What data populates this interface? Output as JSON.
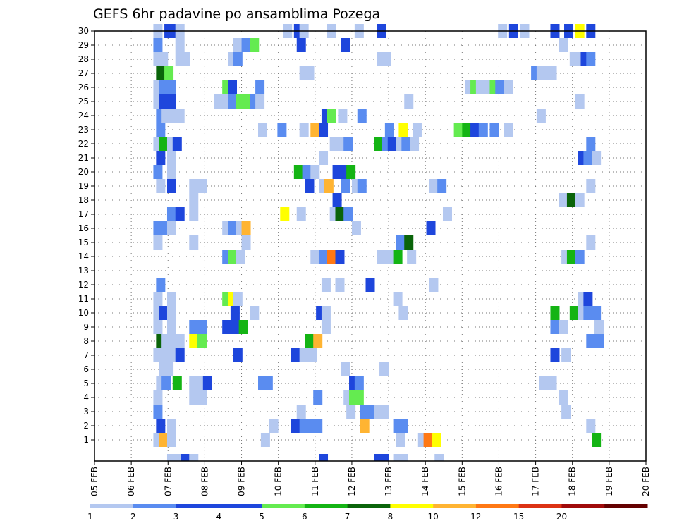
{
  "chart_data": {
    "type": "heatmap",
    "title": "GEFS 6hr padavine po ansamblima Pozega",
    "xlabel": "",
    "ylabel": "",
    "x_tick_labels": [
      "05 FEB",
      "06 FEB",
      "07 FEB",
      "08 FEB",
      "09 FEB",
      "10 FEB",
      "11 FEB",
      "12 FEB",
      "13 FEB",
      "14 FEB",
      "15 FEB",
      "16 FEB",
      "17 FEB",
      "18 FEB",
      "19 FEB",
      "20 FEB"
    ],
    "y_tick_labels": [
      "1",
      "2",
      "3",
      "4",
      "5",
      "6",
      "7",
      "8",
      "9",
      "10",
      "11",
      "12",
      "13",
      "14",
      "15",
      "16",
      "17",
      "18",
      "19",
      "20",
      "21",
      "22",
      "23",
      "24",
      "25",
      "26",
      "27",
      "28",
      "29",
      "30"
    ],
    "x_range_days": [
      0,
      15
    ],
    "y_range": [
      0,
      30
    ],
    "grid": "dotted",
    "colorbar": {
      "levels": [
        "1",
        "2",
        "3",
        "4",
        "5",
        "6",
        "7",
        "8",
        "10",
        "12",
        "15",
        "20"
      ],
      "colors": [
        "#b4c8f0",
        "#5a8cf0",
        "#1e46dc",
        "#1e46dc",
        "#64eb50",
        "#14b414",
        "#0a640a",
        "#ffff00",
        "#ffb432",
        "#ff7814",
        "#dc3214",
        "#a00a0a",
        "#640000"
      ]
    },
    "level_colors": {
      "1": "#b4c8f0",
      "2": "#5a8cf0",
      "3": "#1e46dc",
      "4": "#64eb50",
      "5": "#14b414",
      "6": "#0a640a",
      "7": "#ffff00",
      "8": "#ffb432",
      "9": "#ff7814"
    },
    "cells": [
      [
        30,
        0.23,
        1
      ],
      [
        30,
        0.27,
        3
      ],
      [
        30,
        0.29,
        3
      ],
      [
        30,
        0.31,
        1
      ],
      [
        30,
        0.7,
        1
      ],
      [
        30,
        0.74,
        3
      ],
      [
        30,
        0.76,
        1
      ],
      [
        30,
        0.86,
        1
      ],
      [
        30,
        0.96,
        1
      ],
      [
        30,
        1.04,
        3
      ],
      [
        30,
        1.48,
        1
      ],
      [
        30,
        1.52,
        3
      ],
      [
        30,
        1.56,
        1
      ],
      [
        30,
        1.67,
        3
      ],
      [
        30,
        1.72,
        3
      ],
      [
        30,
        1.76,
        7
      ],
      [
        30,
        1.8,
        3
      ],
      [
        29,
        0.23,
        2
      ],
      [
        29,
        0.31,
        1
      ],
      [
        29,
        0.52,
        1
      ],
      [
        29,
        0.55,
        2
      ],
      [
        29,
        0.58,
        4
      ],
      [
        29,
        0.75,
        3
      ],
      [
        29,
        0.91,
        3
      ],
      [
        29,
        1.7,
        1
      ],
      [
        28,
        0.23,
        1
      ],
      [
        28,
        0.25,
        1
      ],
      [
        28,
        0.31,
        1
      ],
      [
        28,
        0.33,
        1
      ],
      [
        28,
        0.5,
        1
      ],
      [
        28,
        0.52,
        2
      ],
      [
        28,
        1.04,
        1
      ],
      [
        28,
        1.06,
        1
      ],
      [
        28,
        1.74,
        1
      ],
      [
        28,
        1.76,
        1
      ],
      [
        28,
        1.78,
        3
      ],
      [
        28,
        1.8,
        2
      ],
      [
        27,
        0.24,
        6
      ],
      [
        27,
        0.27,
        4
      ],
      [
        27,
        0.76,
        1
      ],
      [
        27,
        0.78,
        1
      ],
      [
        27,
        1.6,
        2
      ],
      [
        27,
        1.62,
        1
      ],
      [
        27,
        1.64,
        1
      ],
      [
        27,
        1.66,
        1
      ],
      [
        26,
        0.23,
        1
      ],
      [
        26,
        0.25,
        2
      ],
      [
        26,
        0.28,
        2
      ],
      [
        26,
        0.48,
        4
      ],
      [
        26,
        0.5,
        3
      ],
      [
        26,
        0.6,
        2
      ],
      [
        26,
        1.36,
        1
      ],
      [
        26,
        1.38,
        4
      ],
      [
        26,
        1.4,
        1
      ],
      [
        26,
        1.42,
        1
      ],
      [
        26,
        1.45,
        4
      ],
      [
        26,
        1.47,
        2
      ],
      [
        26,
        1.5,
        1
      ],
      [
        25,
        0.23,
        1
      ],
      [
        25,
        0.25,
        3
      ],
      [
        25,
        0.28,
        3
      ],
      [
        25,
        0.45,
        1
      ],
      [
        25,
        0.48,
        1
      ],
      [
        25,
        0.5,
        2
      ],
      [
        25,
        0.53,
        4
      ],
      [
        25,
        0.55,
        4
      ],
      [
        25,
        0.58,
        2
      ],
      [
        25,
        0.6,
        1
      ],
      [
        25,
        1.14,
        1
      ],
      [
        25,
        1.76,
        1
      ],
      [
        24,
        0.24,
        2
      ],
      [
        24,
        0.26,
        1
      ],
      [
        24,
        0.28,
        1
      ],
      [
        24,
        0.31,
        1
      ],
      [
        24,
        0.84,
        3
      ],
      [
        24,
        0.86,
        4
      ],
      [
        24,
        0.9,
        1
      ],
      [
        24,
        0.97,
        2
      ],
      [
        24,
        1.62,
        1
      ],
      [
        23,
        0.24,
        2
      ],
      [
        23,
        0.61,
        1
      ],
      [
        23,
        0.68,
        2
      ],
      [
        23,
        0.76,
        1
      ],
      [
        23,
        0.8,
        8
      ],
      [
        23,
        0.83,
        3
      ],
      [
        23,
        1.07,
        2
      ],
      [
        23,
        1.12,
        7
      ],
      [
        23,
        1.17,
        1
      ],
      [
        23,
        1.32,
        4
      ],
      [
        23,
        1.35,
        5
      ],
      [
        23,
        1.38,
        3
      ],
      [
        23,
        1.41,
        2
      ],
      [
        23,
        1.45,
        2
      ],
      [
        23,
        1.5,
        1
      ],
      [
        22,
        0.23,
        1
      ],
      [
        22,
        0.25,
        5
      ],
      [
        22,
        0.28,
        1
      ],
      [
        22,
        0.3,
        3
      ],
      [
        22,
        0.87,
        1
      ],
      [
        22,
        0.9,
        1
      ],
      [
        22,
        0.92,
        2
      ],
      [
        22,
        1.03,
        5
      ],
      [
        22,
        1.06,
        2
      ],
      [
        22,
        1.08,
        3
      ],
      [
        22,
        1.11,
        1
      ],
      [
        22,
        1.13,
        2
      ],
      [
        22,
        1.16,
        1
      ],
      [
        22,
        1.8,
        2
      ],
      [
        21,
        0.24,
        3
      ],
      [
        21,
        0.28,
        1
      ],
      [
        21,
        0.83,
        1
      ],
      [
        21,
        1.77,
        3
      ],
      [
        21,
        1.79,
        2
      ],
      [
        21,
        1.82,
        1
      ],
      [
        20,
        0.23,
        2
      ],
      [
        20,
        0.28,
        1
      ],
      [
        20,
        0.74,
        5
      ],
      [
        20,
        0.77,
        2
      ],
      [
        20,
        0.8,
        1
      ],
      [
        20,
        0.88,
        3
      ],
      [
        20,
        0.91,
        3
      ],
      [
        20,
        0.93,
        5
      ],
      [
        19,
        0.24,
        1
      ],
      [
        19,
        0.28,
        3
      ],
      [
        19,
        0.36,
        1
      ],
      [
        19,
        0.39,
        1
      ],
      [
        19,
        0.78,
        3
      ],
      [
        19,
        0.83,
        1
      ],
      [
        19,
        0.85,
        8
      ],
      [
        19,
        0.91,
        2
      ],
      [
        19,
        0.95,
        1
      ],
      [
        19,
        0.97,
        2
      ],
      [
        19,
        1.23,
        1
      ],
      [
        19,
        1.26,
        2
      ],
      [
        19,
        1.8,
        1
      ],
      [
        18,
        0.36,
        1
      ],
      [
        18,
        0.88,
        3
      ],
      [
        18,
        1.7,
        1
      ],
      [
        18,
        1.73,
        6
      ],
      [
        18,
        1.76,
        1
      ],
      [
        17,
        0.28,
        2
      ],
      [
        17,
        0.31,
        3
      ],
      [
        17,
        0.36,
        1
      ],
      [
        17,
        0.69,
        7
      ],
      [
        17,
        0.75,
        1
      ],
      [
        17,
        0.87,
        1
      ],
      [
        17,
        0.89,
        6
      ],
      [
        17,
        0.92,
        2
      ],
      [
        17,
        1.28,
        1
      ],
      [
        16,
        0.23,
        2
      ],
      [
        16,
        0.26,
        2
      ],
      [
        16,
        0.28,
        1
      ],
      [
        16,
        0.48,
        1
      ],
      [
        16,
        0.5,
        2
      ],
      [
        16,
        0.53,
        1
      ],
      [
        16,
        0.55,
        8
      ],
      [
        16,
        0.95,
        1
      ],
      [
        16,
        1.22,
        3
      ],
      [
        15,
        0.23,
        1
      ],
      [
        15,
        0.36,
        1
      ],
      [
        15,
        0.55,
        1
      ],
      [
        15,
        1.11,
        2
      ],
      [
        15,
        1.14,
        6
      ],
      [
        15,
        1.8,
        1
      ],
      [
        14,
        0.48,
        2
      ],
      [
        14,
        0.5,
        4
      ],
      [
        14,
        0.53,
        1
      ],
      [
        14,
        0.8,
        1
      ],
      [
        14,
        0.83,
        2
      ],
      [
        14,
        0.86,
        9
      ],
      [
        14,
        0.89,
        3
      ],
      [
        14,
        1.04,
        1
      ],
      [
        14,
        1.07,
        1
      ],
      [
        14,
        1.1,
        5
      ],
      [
        14,
        1.15,
        1
      ],
      [
        14,
        1.71,
        1
      ],
      [
        14,
        1.73,
        5
      ],
      [
        14,
        1.76,
        2
      ],
      [
        12,
        0.24,
        2
      ],
      [
        12,
        0.84,
        1
      ],
      [
        12,
        0.89,
        1
      ],
      [
        12,
        1.0,
        3
      ],
      [
        12,
        1.23,
        1
      ],
      [
        11,
        0.23,
        1
      ],
      [
        11,
        0.28,
        1
      ],
      [
        11,
        0.48,
        4
      ],
      [
        11,
        0.5,
        7
      ],
      [
        11,
        0.52,
        1
      ],
      [
        11,
        1.1,
        1
      ],
      [
        11,
        1.77,
        1
      ],
      [
        11,
        1.79,
        3
      ],
      [
        10,
        0.23,
        1
      ],
      [
        10,
        0.25,
        3
      ],
      [
        10,
        0.28,
        1
      ],
      [
        10,
        0.51,
        3
      ],
      [
        10,
        0.58,
        1
      ],
      [
        10,
        0.82,
        3
      ],
      [
        10,
        0.84,
        1
      ],
      [
        10,
        1.12,
        1
      ],
      [
        10,
        1.67,
        5
      ],
      [
        10,
        1.74,
        5
      ],
      [
        10,
        1.77,
        1
      ],
      [
        10,
        1.79,
        2
      ],
      [
        10,
        1.82,
        2
      ],
      [
        9,
        0.23,
        1
      ],
      [
        9,
        0.28,
        1
      ],
      [
        9,
        0.36,
        2
      ],
      [
        9,
        0.39,
        2
      ],
      [
        9,
        0.48,
        3
      ],
      [
        9,
        0.51,
        3
      ],
      [
        9,
        0.54,
        5
      ],
      [
        9,
        0.84,
        1
      ],
      [
        9,
        1.67,
        2
      ],
      [
        9,
        1.7,
        1
      ],
      [
        9,
        1.83,
        1
      ],
      [
        8,
        0.24,
        6
      ],
      [
        8,
        0.26,
        1
      ],
      [
        8,
        0.28,
        1
      ],
      [
        8,
        0.31,
        1
      ],
      [
        8,
        0.36,
        7
      ],
      [
        8,
        0.39,
        4
      ],
      [
        8,
        0.78,
        5
      ],
      [
        8,
        0.81,
        8
      ],
      [
        8,
        1.8,
        2
      ],
      [
        8,
        1.83,
        2
      ],
      [
        7,
        0.23,
        1
      ],
      [
        7,
        0.25,
        1
      ],
      [
        7,
        0.28,
        1
      ],
      [
        7,
        0.31,
        3
      ],
      [
        7,
        0.52,
        3
      ],
      [
        7,
        0.73,
        3
      ],
      [
        7,
        0.76,
        1
      ],
      [
        7,
        0.79,
        1
      ],
      [
        7,
        1.67,
        3
      ],
      [
        7,
        1.71,
        1
      ],
      [
        6,
        0.25,
        1
      ],
      [
        6,
        0.27,
        1
      ],
      [
        6,
        0.91,
        1
      ],
      [
        6,
        1.05,
        1
      ],
      [
        5,
        0.24,
        1
      ],
      [
        5,
        0.26,
        2
      ],
      [
        5,
        0.3,
        5
      ],
      [
        5,
        0.36,
        1
      ],
      [
        5,
        0.39,
        1
      ],
      [
        5,
        0.41,
        3
      ],
      [
        5,
        0.61,
        2
      ],
      [
        5,
        0.63,
        2
      ],
      [
        5,
        0.94,
        3
      ],
      [
        5,
        0.96,
        2
      ],
      [
        5,
        1.63,
        1
      ],
      [
        5,
        1.66,
        1
      ],
      [
        4,
        0.23,
        1
      ],
      [
        4,
        0.36,
        1
      ],
      [
        4,
        0.39,
        1
      ],
      [
        4,
        0.81,
        2
      ],
      [
        4,
        0.92,
        1
      ],
      [
        4,
        0.94,
        4
      ],
      [
        4,
        0.96,
        4
      ],
      [
        4,
        1.7,
        1
      ],
      [
        3,
        0.23,
        2
      ],
      [
        3,
        0.75,
        1
      ],
      [
        3,
        0.93,
        1
      ],
      [
        3,
        0.98,
        2
      ],
      [
        3,
        1.0,
        2
      ],
      [
        3,
        1.03,
        1
      ],
      [
        3,
        1.05,
        1
      ],
      [
        3,
        1.71,
        1
      ],
      [
        2,
        0.24,
        3
      ],
      [
        2,
        0.28,
        1
      ],
      [
        2,
        0.65,
        1
      ],
      [
        2,
        0.73,
        3
      ],
      [
        2,
        0.76,
        2
      ],
      [
        2,
        0.78,
        2
      ],
      [
        2,
        0.81,
        2
      ],
      [
        2,
        0.98,
        8
      ],
      [
        2,
        1.1,
        2
      ],
      [
        2,
        1.12,
        2
      ],
      [
        2,
        1.8,
        1
      ],
      [
        1,
        0.23,
        1
      ],
      [
        1,
        0.25,
        8
      ],
      [
        1,
        0.28,
        1
      ],
      [
        1,
        0.62,
        1
      ],
      [
        1,
        1.11,
        1
      ],
      [
        1,
        1.19,
        1
      ],
      [
        1,
        1.21,
        9
      ],
      [
        1,
        1.24,
        7
      ],
      [
        1,
        1.82,
        5
      ]
    ],
    "bottom_cells": [
      [
        0.28,
        1
      ],
      [
        0.3,
        1
      ],
      [
        0.33,
        3
      ],
      [
        0.36,
        1
      ],
      [
        0.83,
        3
      ],
      [
        1.03,
        3
      ],
      [
        1.05,
        3
      ],
      [
        1.1,
        1
      ],
      [
        1.12,
        1
      ],
      [
        1.25,
        1
      ]
    ]
  }
}
